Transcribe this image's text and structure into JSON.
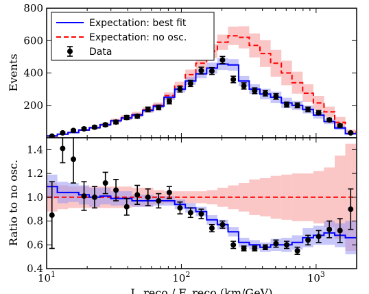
{
  "chart_data": {
    "type": "line",
    "x_scale": "log",
    "xlim": [
      10,
      2000
    ],
    "x_ticks": [
      {
        "value": 10,
        "base": "10",
        "exp": "1"
      },
      {
        "value": 100,
        "base": "10",
        "exp": "2"
      },
      {
        "value": 1000,
        "base": "10",
        "exp": "3"
      }
    ],
    "x_label": "L_reco / E_reco (km/GeV)",
    "x_edges": [
      10,
      12,
      14.4,
      17.3,
      20.7,
      24.9,
      29.9,
      35.8,
      43,
      51.6,
      61.9,
      74.3,
      89.2,
      107,
      128,
      154,
      185,
      222,
      266,
      319,
      383,
      460,
      552,
      662,
      795,
      954,
      1145,
      1374,
      1649,
      1979
    ],
    "x_centers": [
      10.95,
      13.15,
      15.8,
      18.95,
      22.7,
      27.3,
      32.7,
      39.3,
      47.1,
      56.5,
      67.8,
      81.4,
      97.7,
      117,
      140.5,
      168.5,
      202,
      243,
      291,
      350,
      420,
      504,
      605,
      726,
      871,
      1045,
      1254,
      1505,
      1806
    ],
    "top_panel": {
      "ylabel": "Events",
      "ylim": [
        0,
        800
      ],
      "yticks": [
        0,
        200,
        400,
        600,
        800
      ],
      "legend": {
        "position": "top-left",
        "entries": [
          {
            "label": "Expectation: best fit",
            "color": "#0000ff",
            "style": "solid"
          },
          {
            "label": "Expectation: no osc.",
            "color": "#ff0000",
            "style": "dashed"
          },
          {
            "label": "Data",
            "color": "#000000",
            "style": "marker"
          }
        ]
      },
      "series": [
        {
          "name": "Expectation: best fit",
          "color": "#0000ff",
          "band_color": "#9999f5",
          "values": [
            12,
            22,
            32,
            48,
            62,
            80,
            105,
            122,
            140,
            168,
            195,
            250,
            300,
            350,
            395,
            430,
            455,
            450,
            350,
            300,
            270,
            250,
            215,
            200,
            175,
            140,
            100,
            60,
            25
          ],
          "band_frac": [
            0.2,
            0.18,
            0.15,
            0.12,
            0.1,
            0.09,
            0.08,
            0.08,
            0.08,
            0.07,
            0.07,
            0.07,
            0.07,
            0.07,
            0.07,
            0.08,
            0.08,
            0.08,
            0.09,
            0.1,
            0.12,
            0.14,
            0.15,
            0.14,
            0.14,
            0.15,
            0.16,
            0.2,
            0.3
          ]
        },
        {
          "name": "Expectation: no osc.",
          "color": "#ff0000",
          "band_color": "#f9a0a0",
          "values": [
            10,
            22,
            32,
            48,
            62,
            80,
            106,
            124,
            144,
            172,
            200,
            260,
            320,
            390,
            460,
            535,
            590,
            630,
            620,
            570,
            520,
            460,
            400,
            340,
            275,
            215,
            160,
            95,
            35
          ],
          "band_frac": [
            0.2,
            0.15,
            0.12,
            0.12,
            0.12,
            0.12,
            0.12,
            0.12,
            0.12,
            0.1,
            0.09,
            0.08,
            0.08,
            0.08,
            0.08,
            0.08,
            0.08,
            0.09,
            0.11,
            0.13,
            0.16,
            0.18,
            0.19,
            0.2,
            0.2,
            0.2,
            0.2,
            0.35,
            0.45
          ]
        }
      ],
      "data": {
        "name": "Data",
        "values": [
          10,
          30,
          45,
          55,
          65,
          80,
          97,
          125,
          133,
          175,
          187,
          225,
          300,
          335,
          415,
          412,
          480,
          360,
          320,
          290,
          275,
          255,
          205,
          200,
          175,
          155,
          110,
          75,
          30
        ],
        "errors": [
          4,
          6,
          7,
          8,
          9,
          10,
          11,
          12,
          12,
          14,
          14,
          16,
          18,
          19,
          21,
          21,
          22,
          20,
          19,
          18,
          17,
          17,
          15,
          15,
          14,
          13,
          11,
          9,
          6
        ]
      }
    },
    "bottom_panel": {
      "ylabel": "Ratio to no osc.",
      "ylim": [
        0.4,
        1.5
      ],
      "yticks": [
        0.4,
        0.6,
        0.8,
        1.0,
        1.2,
        1.4
      ],
      "ytick_labels": [
        "0.4",
        "0.6",
        "0.8",
        "1.0",
        "1.2",
        "1.4"
      ],
      "reference_line": 1.0,
      "series": [
        {
          "name": "Expectation: best fit",
          "color": "#0000ff",
          "band_color": "#9999f5",
          "values": [
            1.09,
            1.04,
            1.04,
            1.02,
            1.0,
            1.01,
            0.99,
            0.99,
            0.97,
            0.97,
            0.97,
            0.97,
            0.94,
            0.91,
            0.88,
            0.81,
            0.77,
            0.71,
            0.62,
            0.6,
            0.58,
            0.6,
            0.6,
            0.62,
            0.66,
            0.68,
            0.7,
            0.68,
            0.66
          ],
          "band_half": [
            0.1,
            0.09,
            0.08,
            0.08,
            0.08,
            0.07,
            0.06,
            0.06,
            0.05,
            0.05,
            0.04,
            0.04,
            0.04,
            0.04,
            0.04,
            0.04,
            0.04,
            0.04,
            0.04,
            0.04,
            0.04,
            0.05,
            0.06,
            0.06,
            0.08,
            0.08,
            0.1,
            0.1,
            0.14
          ]
        },
        {
          "name": "Expectation: no osc.",
          "color": "#ff0000",
          "band_color": "#f9a0a0",
          "values": [
            1.0,
            1.0,
            1.0,
            1.0,
            1.0,
            1.0,
            1.0,
            1.0,
            1.0,
            1.0,
            1.0,
            1.0,
            1.0,
            1.0,
            1.0,
            1.0,
            1.0,
            1.0,
            1.0,
            1.0,
            1.0,
            1.0,
            1.0,
            1.0,
            1.0,
            1.0,
            1.0,
            1.0,
            1.0
          ],
          "band_half": [
            0.12,
            0.1,
            0.09,
            0.09,
            0.09,
            0.09,
            0.09,
            0.09,
            0.08,
            0.08,
            0.06,
            0.05,
            0.05,
            0.05,
            0.05,
            0.06,
            0.08,
            0.1,
            0.12,
            0.15,
            0.16,
            0.18,
            0.19,
            0.2,
            0.2,
            0.22,
            0.25,
            0.35,
            0.45
          ]
        }
      ],
      "data": {
        "name": "Data",
        "values": [
          0.85,
          1.41,
          1.32,
          1.01,
          1.0,
          1.12,
          1.06,
          0.92,
          1.02,
          1.0,
          0.97,
          1.04,
          0.91,
          0.87,
          0.86,
          0.74,
          0.77,
          0.6,
          0.57,
          0.57,
          0.58,
          0.61,
          0.6,
          0.55,
          0.64,
          0.67,
          0.73,
          0.72,
          0.9
        ],
        "errors": [
          0.28,
          0.12,
          0.2,
          0.12,
          0.09,
          0.09,
          0.09,
          0.07,
          0.08,
          0.07,
          0.06,
          0.05,
          0.05,
          0.04,
          0.04,
          0.03,
          0.03,
          0.03,
          0.02,
          0.02,
          0.02,
          0.03,
          0.03,
          0.03,
          0.04,
          0.05,
          0.07,
          0.1,
          0.17
        ]
      }
    }
  }
}
